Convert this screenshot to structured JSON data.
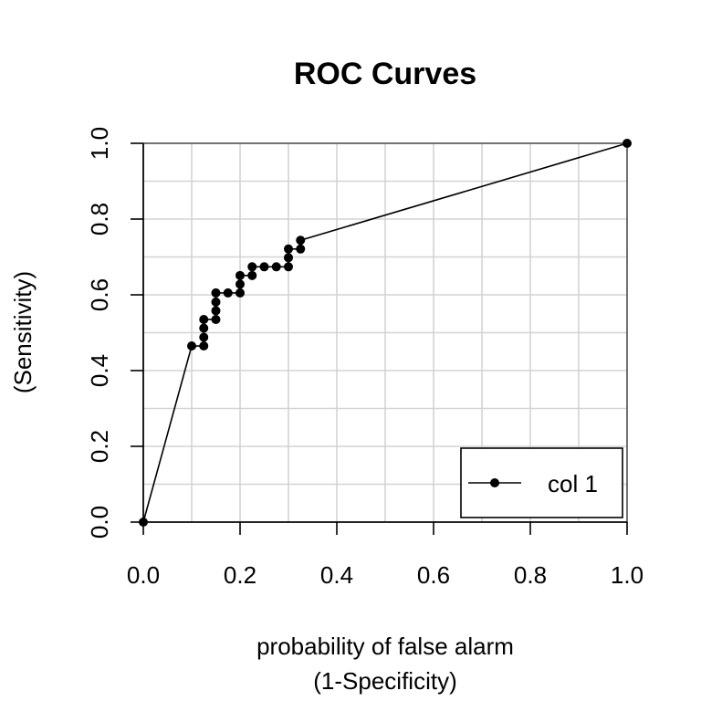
{
  "chart_data": {
    "type": "line",
    "title": "ROC Curves",
    "xlabel": [
      "probability of false alarm",
      "(1-Specificity)"
    ],
    "ylabel": [
      "(Sensitivity)"
    ],
    "xlim": [
      0,
      1
    ],
    "ylim": [
      0,
      1
    ],
    "x_ticks": [
      "0.0",
      "0.2",
      "0.4",
      "0.6",
      "0.8",
      "1.0"
    ],
    "y_ticks": [
      "0.0",
      "0.2",
      "0.4",
      "0.6",
      "0.8",
      "1.0"
    ],
    "grid": true,
    "legend_position": "bottom-right",
    "series": [
      {
        "name": "col 1",
        "color": "#000000",
        "marker": "dot",
        "points": [
          [
            0.0,
            0.0
          ],
          [
            0.1,
            0.465
          ],
          [
            0.125,
            0.465
          ],
          [
            0.125,
            0.488
          ],
          [
            0.125,
            0.512
          ],
          [
            0.125,
            0.535
          ],
          [
            0.15,
            0.535
          ],
          [
            0.15,
            0.558
          ],
          [
            0.15,
            0.581
          ],
          [
            0.15,
            0.605
          ],
          [
            0.175,
            0.605
          ],
          [
            0.2,
            0.605
          ],
          [
            0.2,
            0.628
          ],
          [
            0.2,
            0.651
          ],
          [
            0.225,
            0.651
          ],
          [
            0.225,
            0.674
          ],
          [
            0.25,
            0.674
          ],
          [
            0.275,
            0.674
          ],
          [
            0.3,
            0.674
          ],
          [
            0.3,
            0.698
          ],
          [
            0.3,
            0.721
          ],
          [
            0.325,
            0.721
          ],
          [
            0.325,
            0.744
          ],
          [
            1.0,
            1.0
          ]
        ]
      }
    ]
  }
}
